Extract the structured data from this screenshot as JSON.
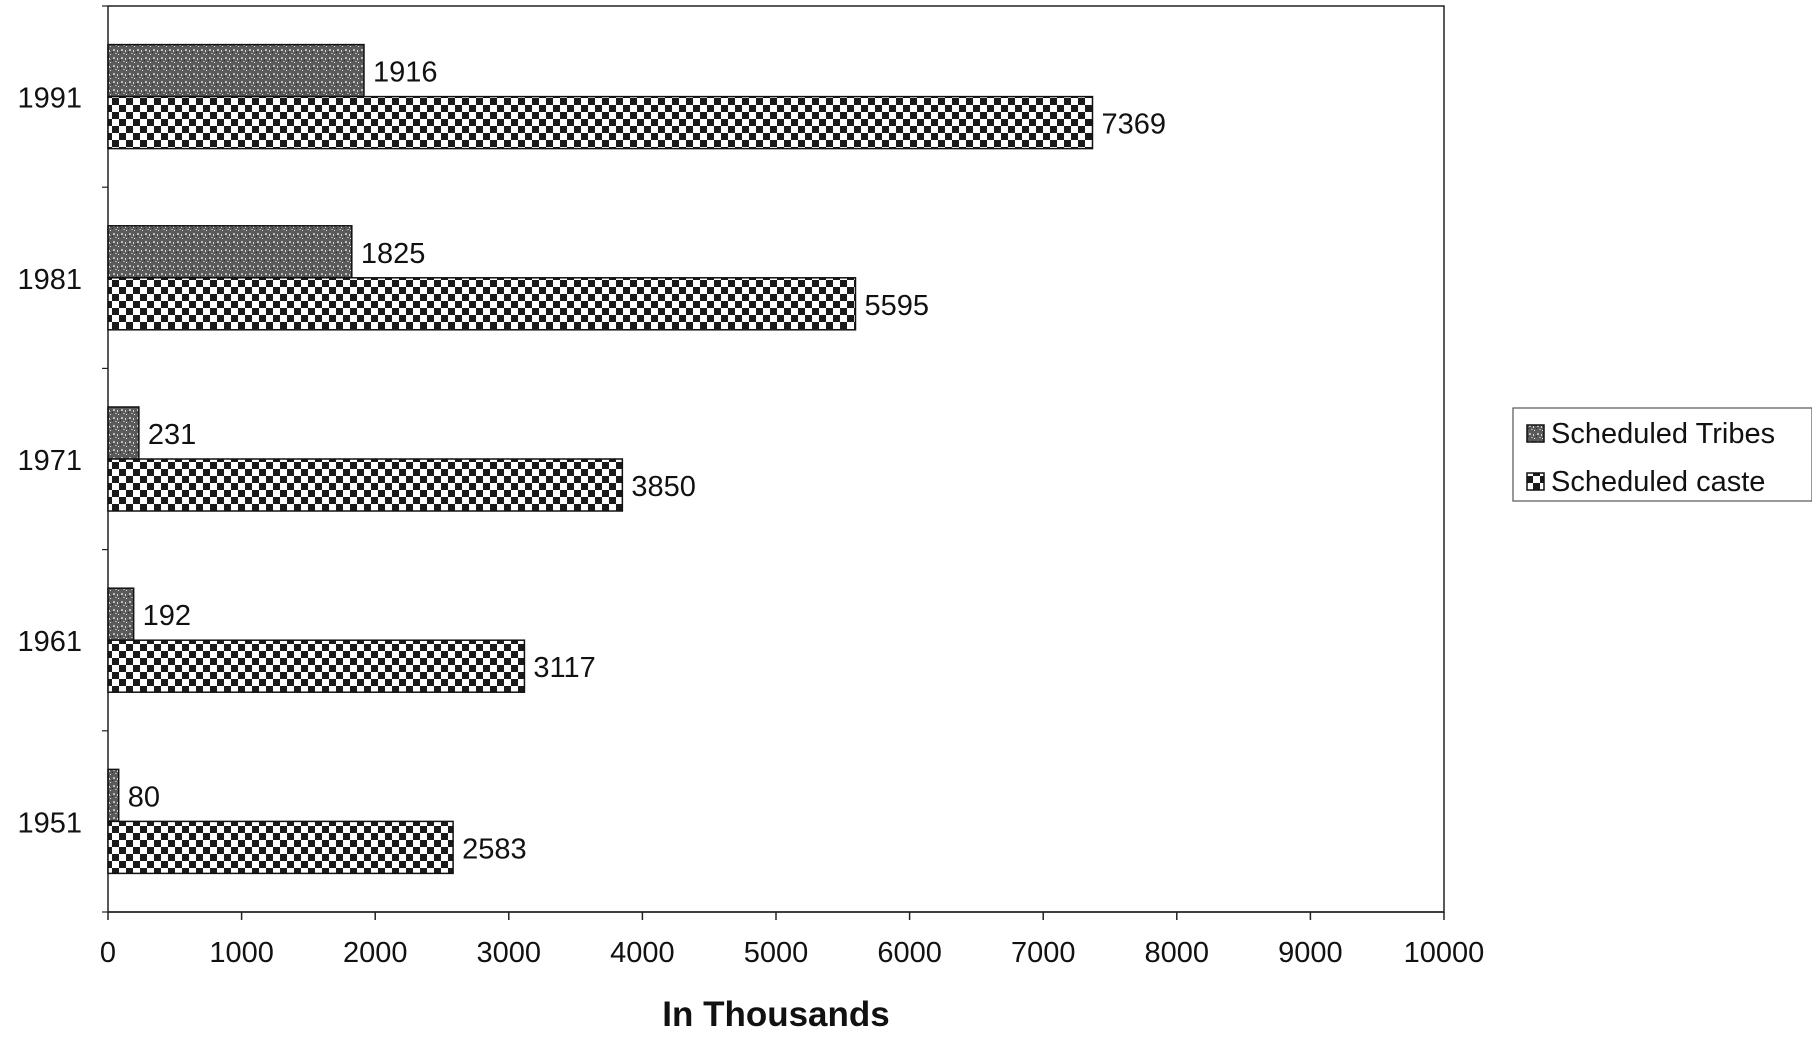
{
  "chart_data": {
    "type": "bar",
    "orientation": "horizontal",
    "title": "",
    "xlabel": "In Thousands",
    "ylabel": "",
    "xlim": [
      0,
      10000
    ],
    "x_ticks": [
      "0",
      "1000",
      "2000",
      "3000",
      "4000",
      "5000",
      "6000",
      "7000",
      "8000",
      "9000",
      "10000"
    ],
    "categories": [
      "1991",
      "1981",
      "1971",
      "1961",
      "1951"
    ],
    "series": [
      {
        "name": "Scheduled Tribes",
        "values": [
          1916,
          1825,
          231,
          192,
          80
        ],
        "pattern": "dark-speckle",
        "color": "#6e6e6e"
      },
      {
        "name": "Scheduled caste",
        "values": [
          7369,
          5595,
          3850,
          3117,
          2583
        ],
        "pattern": "checkerboard",
        "color": "#1a1a1a"
      }
    ],
    "legend": {
      "position": "right",
      "entries": [
        "Scheduled Tribes",
        "Scheduled caste"
      ]
    },
    "grid": false
  }
}
